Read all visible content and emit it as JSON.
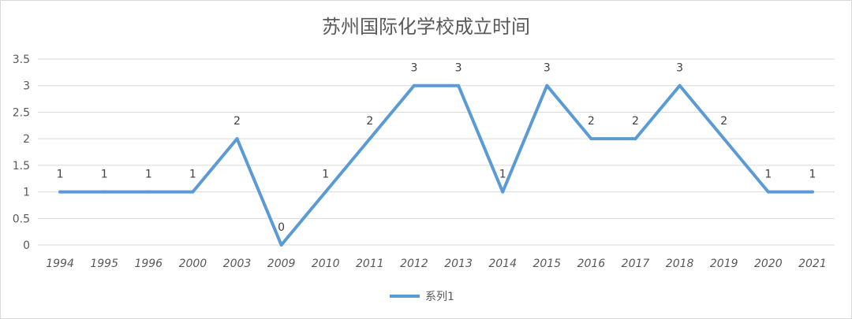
{
  "chart_data": {
    "type": "line",
    "title": "苏州国际化学校成立时间",
    "xlabel": "",
    "ylabel": "",
    "categories": [
      "1994",
      "1995",
      "1996",
      "2000",
      "2003",
      "2009",
      "2010",
      "2011",
      "2012",
      "2013",
      "2014",
      "2015",
      "2016",
      "2017",
      "2018",
      "2019",
      "2020",
      "2021"
    ],
    "series": [
      {
        "name": "系列1",
        "values": [
          1,
          1,
          1,
          1,
          2,
          0,
          1,
          2,
          3,
          3,
          1,
          3,
          2,
          2,
          3,
          2,
          1,
          1
        ]
      }
    ],
    "ylim": [
      0,
      3.5
    ],
    "yticks": [
      "0",
      "0.5",
      "1",
      "1.5",
      "2",
      "2.5",
      "3",
      "3.5"
    ],
    "grid": true,
    "legend_position": "bottom",
    "colors": {
      "line": "#5b9bd5",
      "grid": "#d9d9d9",
      "text": "#595959"
    }
  }
}
